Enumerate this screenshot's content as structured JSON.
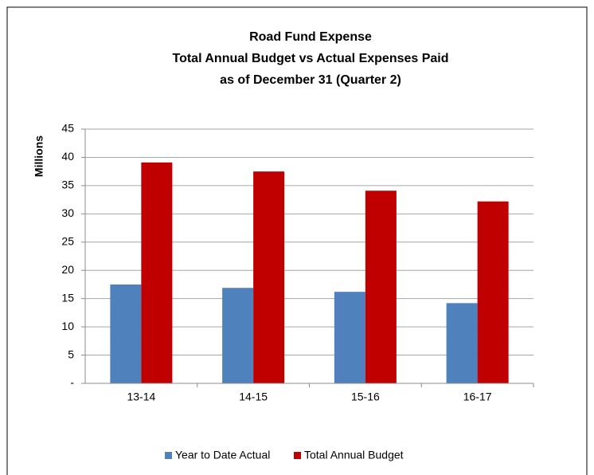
{
  "chart_data": {
    "type": "bar",
    "title": [
      "Road Fund Expense",
      "Total Annual Budget vs Actual Expenses Paid",
      "as of December 31 (Quarter 2)"
    ],
    "ylabel": "Millions",
    "categories": [
      "13-14",
      "14-15",
      "15-16",
      "16-17"
    ],
    "series": [
      {
        "name": "Year to Date Actual",
        "color": "#4f81bd",
        "values": [
          17.5,
          16.9,
          16.2,
          14.2
        ]
      },
      {
        "name": "Total Annual Budget",
        "color": "#c00000",
        "values": [
          39.1,
          37.5,
          34.1,
          32.2
        ]
      }
    ],
    "ylim": [
      0,
      45
    ],
    "yticks": [
      {
        "value": 0,
        "label": "-"
      },
      5,
      10,
      15,
      20,
      25,
      30,
      35,
      40,
      45
    ],
    "grid": true,
    "legend": "bottom"
  }
}
